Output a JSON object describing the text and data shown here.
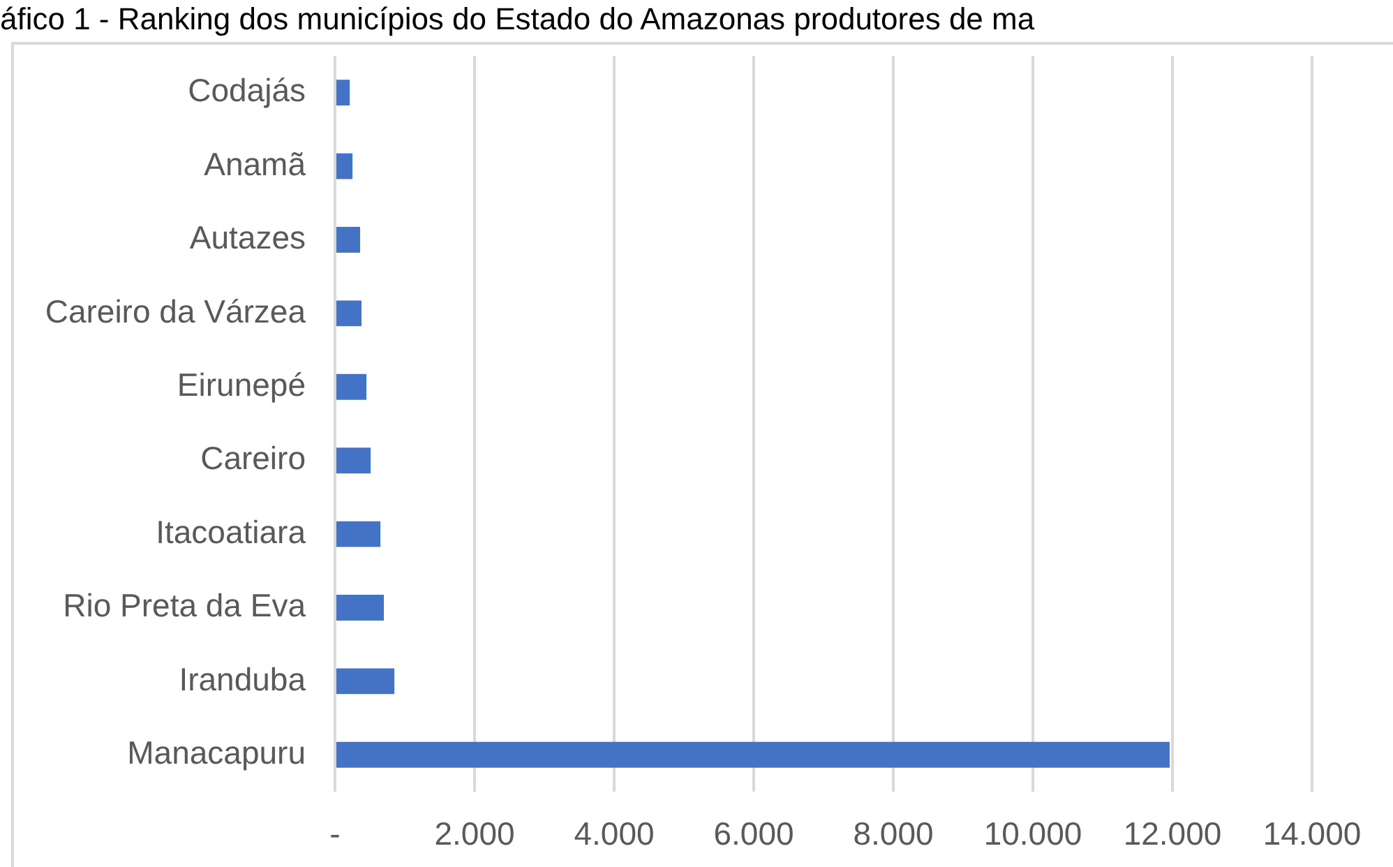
{
  "chart_data": {
    "type": "bar",
    "orientation": "horizontal",
    "title": "áfico 1 - Ranking dos municípios do Estado do Amazonas produtores de ma",
    "categories": [
      "Codajás",
      "Anamã",
      "Autazes",
      "Careiro da Várzea",
      "Eirunepé",
      "Careiro",
      "Itacoatiara",
      "Rio Preta da Eva",
      "Iranduba",
      "Manacapuru"
    ],
    "values": [
      210,
      250,
      360,
      380,
      450,
      510,
      650,
      700,
      850,
      11960
    ],
    "color": "#4472c4",
    "xlim": [
      0,
      14000
    ],
    "xticks": [
      {
        "value": 0,
        "label": "-"
      },
      {
        "value": 2000,
        "label": "2.000"
      },
      {
        "value": 4000,
        "label": "4.000"
      },
      {
        "value": 6000,
        "label": "6.000"
      },
      {
        "value": 8000,
        "label": "8.000"
      },
      {
        "value": 10000,
        "label": "10.000"
      },
      {
        "value": 12000,
        "label": "12.000"
      },
      {
        "value": 14000,
        "label": "14.000"
      }
    ],
    "grid": "x",
    "legend": false
  }
}
